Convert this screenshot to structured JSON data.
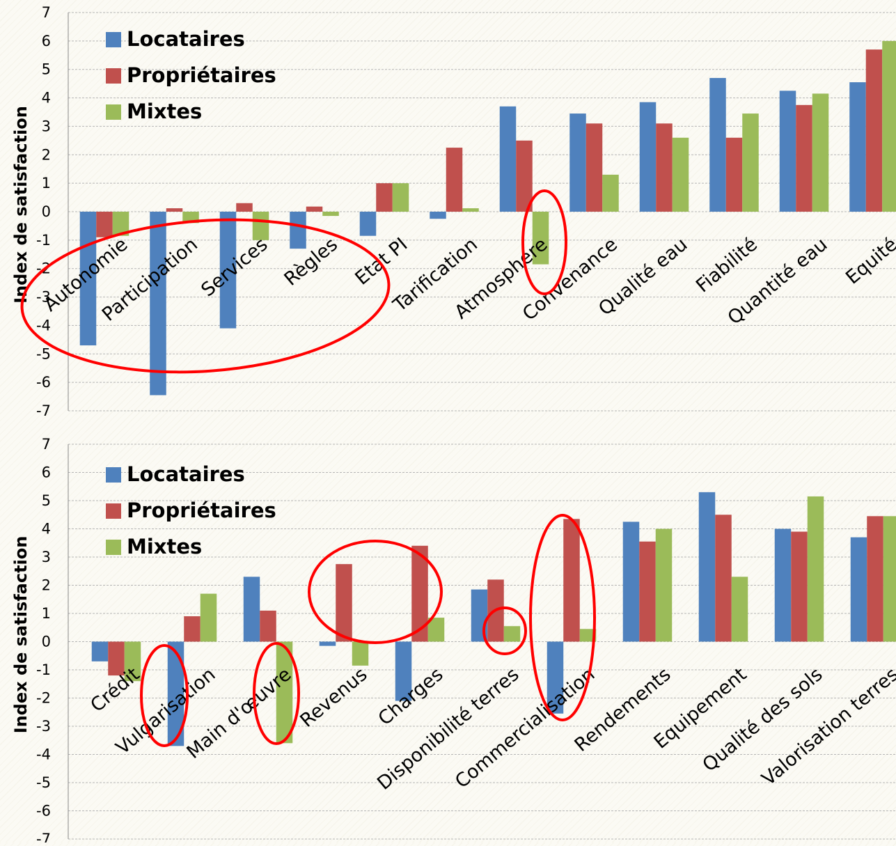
{
  "colors": {
    "Locataires": "#4f81bd",
    "Propriétaires": "#c0504d",
    "Mixtes": "#9bbb59",
    "annotation": "#ff0000",
    "grid": "#b5b5b5"
  },
  "chart_data": [
    {
      "type": "bar",
      "ylabel": "Index de satisfaction",
      "ylim": [
        -7,
        7
      ],
      "yticks": [
        7,
        6,
        5,
        4,
        3,
        2,
        1,
        0,
        -1,
        -2,
        -3,
        -4,
        -5,
        -6,
        -7
      ],
      "grid": true,
      "legend_position": "top-left",
      "categories": [
        "Autonomie",
        "Participation",
        "Services",
        "Règles",
        "Etat PI",
        "Tarification",
        "Atmosphere",
        "Convenance",
        "Qualité eau",
        "Fiabilité",
        "Quantité eau",
        "Equité"
      ],
      "series": [
        {
          "name": "Locataires",
          "values": [
            -4.7,
            -6.45,
            -4.1,
            -1.3,
            -0.85,
            -0.25,
            3.7,
            3.45,
            3.85,
            4.7,
            4.25,
            4.55
          ]
        },
        {
          "name": "Propriétaires",
          "values": [
            -0.9,
            0.12,
            0.3,
            0.18,
            1.0,
            2.25,
            2.5,
            3.1,
            3.1,
            2.6,
            3.75,
            5.7
          ]
        },
        {
          "name": "Mixtes",
          "values": [
            -0.85,
            -0.4,
            -1.0,
            -0.15,
            1.0,
            0.12,
            -1.85,
            1.3,
            2.6,
            3.45,
            4.15,
            6.0
          ]
        }
      ]
    },
    {
      "type": "bar",
      "ylabel": "Index de satisfaction",
      "ylim": [
        -7,
        7
      ],
      "yticks": [
        7,
        6,
        5,
        4,
        3,
        2,
        1,
        0,
        -1,
        -2,
        -3,
        -4,
        -5,
        -6,
        -7
      ],
      "grid": true,
      "legend_position": "top-left",
      "categories": [
        "Crédit",
        "Vulgarisation",
        "Main d'œuvre",
        "Revenus",
        "Charges",
        "Disponibilité terres",
        "Commercialisation",
        "Rendements",
        "Equipement",
        "Qualité des sols",
        "Valorisation terres"
      ],
      "series": [
        {
          "name": "Locataires",
          "values": [
            -0.7,
            -3.7,
            2.3,
            -0.15,
            -2.1,
            1.85,
            -2.55,
            4.25,
            5.3,
            4.0,
            3.7
          ]
        },
        {
          "name": "Propriétaires",
          "values": [
            -1.2,
            0.9,
            1.1,
            2.75,
            3.4,
            2.2,
            4.35,
            3.55,
            4.5,
            3.9,
            4.45
          ]
        },
        {
          "name": "Mixtes",
          "values": [
            -1.4,
            1.7,
            -3.6,
            -0.85,
            0.85,
            0.55,
            0.45,
            4.0,
            2.3,
            5.15,
            4.45
          ]
        }
      ]
    }
  ]
}
